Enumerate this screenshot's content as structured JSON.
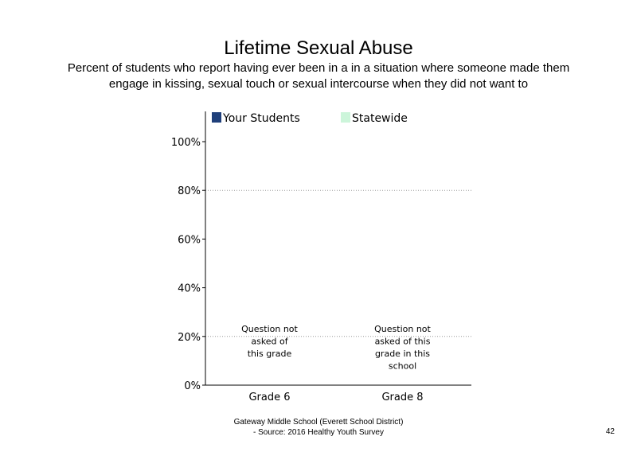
{
  "chart_data": {
    "type": "bar",
    "title": "Lifetime Sexual Abuse",
    "subtitle": "Percent of students who report having ever been in a in a situation where someone made them engage in kissing, sexual touch or sexual intercourse when they did not want to",
    "categories": [
      "Grade 6",
      "Grade 8"
    ],
    "series": [
      {
        "name": "Your Students",
        "values": [
          null,
          null
        ],
        "color": "#1F3F7A"
      },
      {
        "name": "Statewide",
        "values": [
          null,
          null
        ],
        "color": "#CCF5DA"
      }
    ],
    "ylim": [
      0,
      100
    ],
    "yticks": [
      0,
      20,
      40,
      60,
      80,
      100
    ],
    "ytick_labels": [
      "0%",
      "20%",
      "40%",
      "60%",
      "80%",
      "100%"
    ],
    "grid": true,
    "legend_position": "top",
    "notes": [
      {
        "category": "Grade 6",
        "lines": [
          "Question not",
          "asked of",
          "this grade"
        ]
      },
      {
        "category": "Grade 8",
        "lines": [
          "Question not",
          "asked of this",
          "grade in this",
          "school"
        ]
      }
    ]
  },
  "footer": {
    "line1": "Gateway Middle School (Everett School District)",
    "line2": "- Source: 2016 Healthy Youth Survey"
  },
  "page_number": "42"
}
